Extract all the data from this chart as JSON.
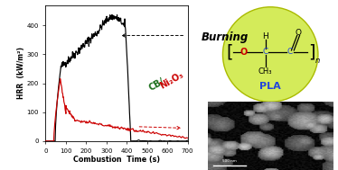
{
  "xlabel": "Combustion  Time (s)",
  "ylabel": "HRR  (kW/m²)",
  "xlim": [
    0,
    700
  ],
  "ylim": [
    0,
    470
  ],
  "yticks": [
    0,
    100,
    200,
    300,
    400
  ],
  "xticks": [
    0,
    100,
    200,
    300,
    400,
    500,
    600,
    700
  ],
  "black_curve_color": "#000000",
  "red_curve_color": "#cc0000",
  "background_color": "#ffffff",
  "burning_label": "Burning",
  "pla_circle_color": "#d4eb5a",
  "pla_circle_edge": "#aabb00",
  "pla_label_color": "#2244dd",
  "cb_black_color": "#1a6e1a",
  "cb_red_color": "#cc0000",
  "o_red_color": "#cc0000",
  "struct_blue_color": "#2244dd"
}
